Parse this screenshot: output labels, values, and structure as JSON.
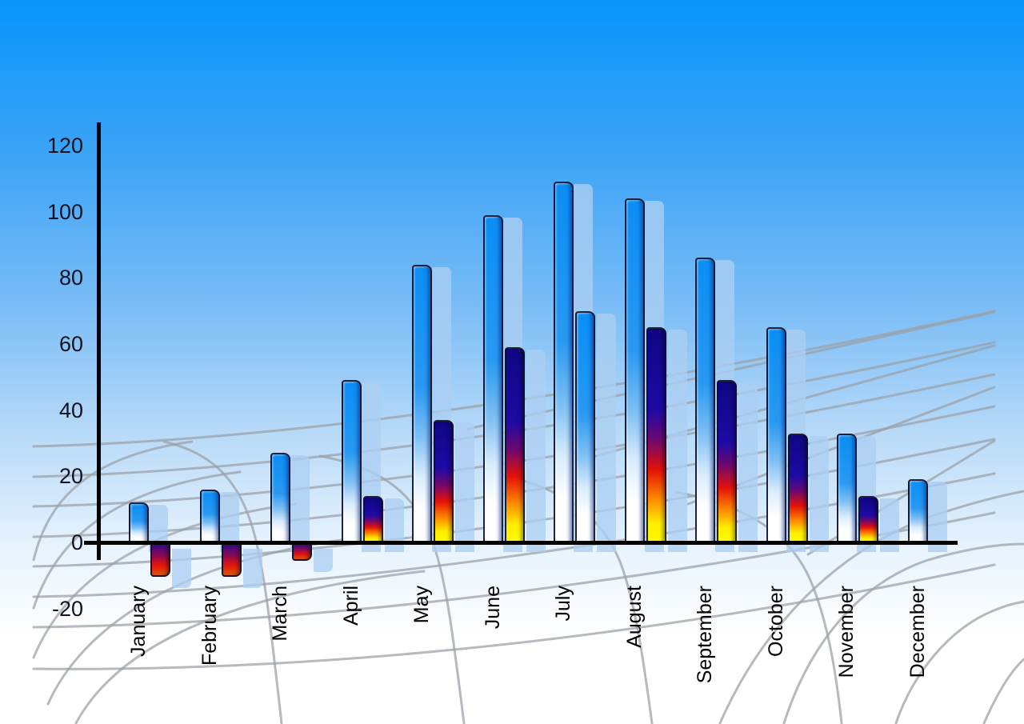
{
  "chart_data": {
    "type": "bar",
    "title": "",
    "categories": [
      "January",
      "February",
      "March",
      "April",
      "May",
      "June",
      "July",
      "August",
      "September",
      "October",
      "November",
      "December"
    ],
    "series": [
      {
        "name": "primary blue bars",
        "style": "blue-gradient",
        "values": [
          12,
          16,
          27,
          49,
          84,
          99,
          109,
          104,
          86,
          65,
          33,
          19
        ]
      },
      {
        "name": "secondary bars",
        "values": [
          -10,
          -10,
          -5,
          14,
          37,
          59,
          70,
          65,
          49,
          33,
          14,
          null
        ],
        "bar_styles": [
          "negative-gradient",
          "negative-gradient",
          "negative-gradient",
          "multicolor",
          "multicolor",
          "multicolor",
          "blue-gradient",
          "multicolor",
          "multicolor",
          "multicolor",
          "multicolor",
          "none"
        ]
      }
    ],
    "y_ticks": [
      120,
      100,
      80,
      60,
      40,
      20,
      0,
      -20
    ],
    "y_tick_labels": [
      "120",
      "100",
      "80",
      "60",
      "40",
      "20",
      "0",
      "-20"
    ],
    "ylim": [
      -20,
      120
    ],
    "xlabel": "",
    "ylabel": "",
    "legend": "none",
    "grid": "decorative curved perspective net behind bars",
    "bar_shadows": "each bar has a translucent light-blue echo offset to the right"
  },
  "colors": {
    "sky_top": "#0795fb",
    "sky_bottom": "#ffffff",
    "bar_blue": "#1a93f2",
    "bar_shadow": "#acd0f2",
    "multicolor_top": "#140a90",
    "multicolor_mid": "#e81408",
    "multicolor_bottom": "#fff200",
    "negative_bottom": "#d8580d",
    "axis": "#000000",
    "grid_line": "#9aa0a6",
    "label_text": "#10131f"
  }
}
